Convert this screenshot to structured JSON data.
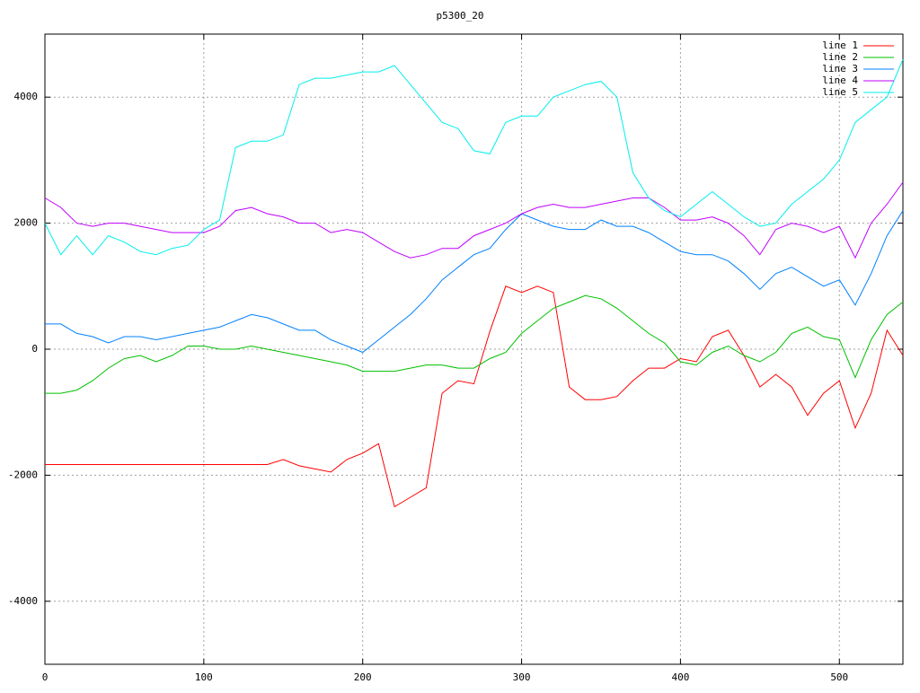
{
  "chart_data": {
    "type": "line",
    "title": "p5300_20",
    "x": [
      0,
      10,
      20,
      30,
      40,
      50,
      60,
      70,
      80,
      90,
      100,
      110,
      120,
      130,
      140,
      150,
      160,
      170,
      180,
      190,
      200,
      210,
      220,
      230,
      240,
      250,
      260,
      270,
      280,
      290,
      300,
      310,
      320,
      330,
      340,
      350,
      360,
      370,
      380,
      390,
      400,
      410,
      420,
      430,
      440,
      450,
      460,
      470,
      480,
      490,
      500,
      510,
      520,
      530,
      540
    ],
    "series": [
      {
        "name": "line 1",
        "color": "#ff0000",
        "values": [
          -1830,
          -1830,
          -1830,
          -1830,
          -1830,
          -1830,
          -1830,
          -1830,
          -1830,
          -1830,
          -1830,
          -1830,
          -1830,
          -1830,
          -1830,
          -1750,
          -1850,
          -1900,
          -1950,
          -1750,
          -1650,
          -1500,
          -2500,
          -2350,
          -2200,
          -700,
          -500,
          -550,
          280,
          1000,
          900,
          1000,
          900,
          -600,
          -800,
          -800,
          -750,
          -500,
          -300,
          -300,
          -150,
          -200,
          200,
          300,
          -100,
          -600,
          -400,
          -600,
          -1050,
          -700,
          -500,
          -1250,
          -700,
          300,
          -100
        ]
      },
      {
        "name": "line 2",
        "color": "#00c000",
        "values": [
          -700,
          -700,
          -650,
          -500,
          -300,
          -150,
          -100,
          -200,
          -100,
          50,
          50,
          0,
          0,
          50,
          0,
          -50,
          -100,
          -150,
          -200,
          -250,
          -350,
          -350,
          -350,
          -300,
          -250,
          -250,
          -300,
          -300,
          -150,
          -50,
          250,
          450,
          650,
          750,
          850,
          800,
          650,
          450,
          250,
          100,
          -200,
          -250,
          -50,
          50,
          -100,
          -200,
          -50,
          250,
          350,
          200,
          150,
          -450,
          150,
          550,
          750
        ]
      },
      {
        "name": "line 3",
        "color": "#0080ff",
        "values": [
          400,
          400,
          250,
          200,
          100,
          200,
          200,
          150,
          200,
          250,
          300,
          350,
          450,
          550,
          500,
          400,
          300,
          300,
          150,
          50,
          -50,
          150,
          350,
          550,
          800,
          1100,
          1300,
          1500,
          1600,
          1900,
          2150,
          2050,
          1950,
          1900,
          1900,
          2050,
          1950,
          1950,
          1850,
          1700,
          1550,
          1500,
          1500,
          1400,
          1200,
          950,
          1200,
          1300,
          1150,
          1000,
          1100,
          700,
          1200,
          1800,
          2200
        ]
      },
      {
        "name": "line 4",
        "color": "#c000ff",
        "values": [
          2400,
          2250,
          2000,
          1950,
          2000,
          2000,
          1950,
          1900,
          1850,
          1850,
          1850,
          1950,
          2200,
          2250,
          2150,
          2100,
          2000,
          2000,
          1850,
          1900,
          1850,
          1700,
          1550,
          1450,
          1500,
          1600,
          1600,
          1800,
          1900,
          2000,
          2150,
          2250,
          2300,
          2250,
          2250,
          2300,
          2350,
          2400,
          2400,
          2250,
          2050,
          2050,
          2100,
          2000,
          1800,
          1500,
          1900,
          2000,
          1950,
          1850,
          1950,
          1450,
          2000,
          2300,
          2650
        ]
      },
      {
        "name": "line 5",
        "color": "#00eeee",
        "values": [
          2000,
          1500,
          1800,
          1500,
          1800,
          1700,
          1550,
          1500,
          1600,
          1650,
          1900,
          2050,
          3200,
          3300,
          3300,
          3400,
          4200,
          4300,
          4300,
          4350,
          4400,
          4400,
          4500,
          4200,
          3900,
          3600,
          3500,
          3150,
          3100,
          3600,
          3700,
          3700,
          4000,
          4100,
          4200,
          4250,
          4000,
          2800,
          2400,
          2200,
          2100,
          2300,
          2500,
          2300,
          2100,
          1950,
          2000,
          2300,
          2500,
          2700,
          3000,
          3600,
          3800,
          4000,
          4600
        ]
      }
    ],
    "xlim": [
      0,
      540
    ],
    "ylim": [
      -5000,
      5000
    ],
    "xticks": [
      0,
      100,
      200,
      300,
      400,
      500
    ],
    "yticks": [
      -4000,
      -2000,
      0,
      2000,
      4000
    ],
    "grid": true,
    "legend": "top-right"
  }
}
